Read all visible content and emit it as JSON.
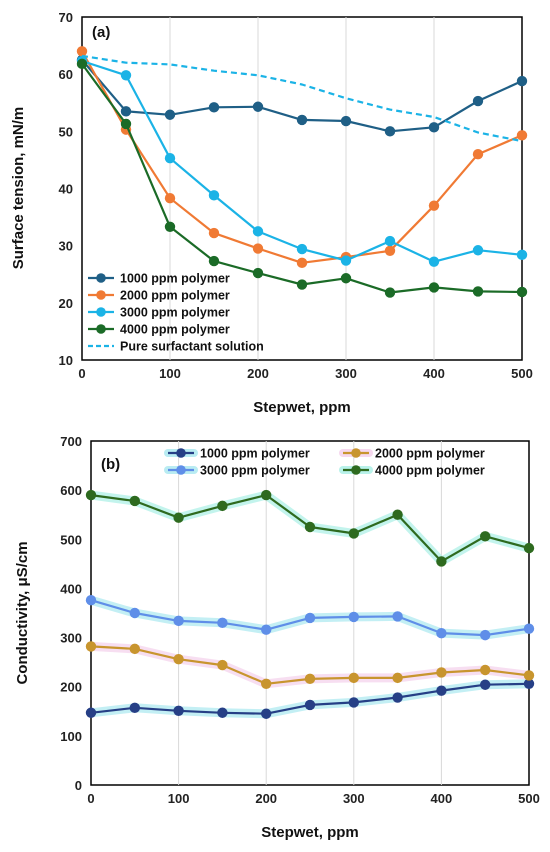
{
  "chart_data": [
    {
      "type": "line",
      "panel_label": "(a)",
      "xlabel": "Stepwet, ppm",
      "ylabel": "Surface tension, mN/m",
      "xlim": [
        0,
        500
      ],
      "ylim": [
        10,
        70
      ],
      "xticks": [
        0,
        100,
        200,
        300,
        400,
        500
      ],
      "yticks": [
        10,
        20,
        30,
        40,
        50,
        60,
        70
      ],
      "grid": "vertical",
      "legend_position": "bottom-left",
      "series": [
        {
          "name": "1000 ppm polymer",
          "color": "#1f5f86",
          "style": "solid",
          "markers": true,
          "x": [
            0,
            50,
            100,
            150,
            200,
            250,
            300,
            350,
            400,
            450,
            500
          ],
          "y": [
            62.5,
            53.5,
            52.9,
            54.2,
            54.3,
            52.0,
            51.8,
            50.0,
            50.7,
            55.3,
            58.8
          ]
        },
        {
          "name": "2000 ppm polymer",
          "color": "#f07a34",
          "style": "solid",
          "markers": true,
          "x": [
            0,
            50,
            100,
            150,
            200,
            250,
            300,
            350,
            400,
            450,
            500
          ],
          "y": [
            64.0,
            50.3,
            38.3,
            32.2,
            29.5,
            27.0,
            28.0,
            29.1,
            37.0,
            46.0,
            49.3
          ]
        },
        {
          "name": "3000 ppm polymer",
          "color": "#1bb3e6",
          "style": "solid",
          "markers": true,
          "x": [
            0,
            50,
            100,
            150,
            200,
            250,
            300,
            350,
            400,
            450,
            500
          ],
          "y": [
            62.3,
            59.8,
            45.3,
            38.8,
            32.5,
            29.4,
            27.4,
            30.8,
            27.2,
            29.2,
            28.4
          ]
        },
        {
          "name": "4000 ppm polymer",
          "color": "#1b6b27",
          "style": "solid",
          "markers": true,
          "x": [
            0,
            50,
            100,
            150,
            200,
            250,
            300,
            350,
            400,
            450,
            500
          ],
          "y": [
            61.8,
            51.3,
            33.3,
            27.3,
            25.2,
            23.2,
            24.3,
            21.8,
            22.7,
            22.0,
            21.9
          ]
        },
        {
          "name": "Pure surfactant solution",
          "color": "#1bb3e6",
          "style": "dashed",
          "markers": false,
          "x": [
            0,
            50,
            100,
            150,
            200,
            250,
            300,
            350,
            400,
            450,
            500
          ],
          "y": [
            63.2,
            62.0,
            61.7,
            60.6,
            59.8,
            58.2,
            55.8,
            53.8,
            52.5,
            49.8,
            48.3
          ]
        }
      ]
    },
    {
      "type": "line",
      "panel_label": "(b)",
      "xlabel": "Stepwet, ppm",
      "ylabel": "Conductivity, μS/cm",
      "xlim": [
        0,
        500
      ],
      "ylim": [
        0,
        700
      ],
      "xticks": [
        0,
        100,
        200,
        300,
        400,
        500
      ],
      "yticks": [
        0,
        100,
        200,
        300,
        400,
        500,
        600,
        700
      ],
      "grid": "vertical",
      "legend_position": "top",
      "series": [
        {
          "name": "1000 ppm polymer",
          "color": "#263f86",
          "glow": "#b9ecf2",
          "style": "solid",
          "markers": true,
          "x": [
            0,
            50,
            100,
            150,
            200,
            250,
            300,
            350,
            400,
            450,
            500
          ],
          "y": [
            147,
            157,
            151,
            147,
            145,
            163,
            168,
            178,
            192,
            204,
            206
          ]
        },
        {
          "name": "2000 ppm polymer",
          "color": "#c8952e",
          "glow": "#f6d8ef",
          "style": "solid",
          "markers": true,
          "x": [
            0,
            50,
            100,
            150,
            200,
            250,
            300,
            350,
            400,
            450,
            500
          ],
          "y": [
            282,
            277,
            256,
            244,
            206,
            216,
            218,
            218,
            229,
            234,
            223
          ]
        },
        {
          "name": "3000 ppm polymer",
          "color": "#5f8ee8",
          "glow": "#b9ecf2",
          "style": "solid",
          "markers": true,
          "x": [
            0,
            50,
            100,
            150,
            200,
            250,
            300,
            350,
            400,
            450,
            500
          ],
          "y": [
            376,
            350,
            334,
            330,
            316,
            340,
            342,
            343,
            309,
            305,
            318
          ]
        },
        {
          "name": "4000 ppm polymer",
          "color": "#2e6a1f",
          "glow": "#b9f2ea",
          "style": "solid",
          "markers": true,
          "x": [
            0,
            50,
            100,
            150,
            200,
            250,
            300,
            350,
            400,
            450,
            500
          ],
          "y": [
            590,
            578,
            544,
            568,
            590,
            525,
            512,
            550,
            455,
            506,
            482
          ]
        }
      ]
    }
  ]
}
